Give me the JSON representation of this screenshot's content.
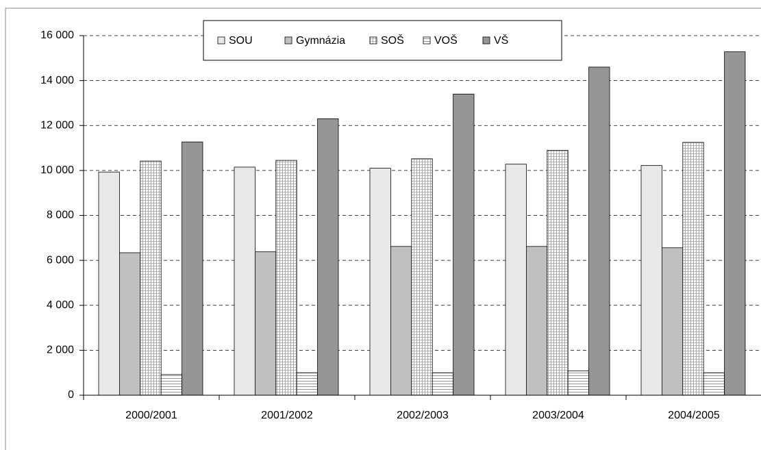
{
  "chart_data": {
    "type": "bar",
    "categories": [
      "2000/2001",
      "2001/2002",
      "2002/2003",
      "2003/2004",
      "2004/2005"
    ],
    "series": [
      {
        "name": "SOU",
        "color": "#e8e8e8",
        "values": [
          9930,
          10150,
          10100,
          10280,
          10220
        ]
      },
      {
        "name": "Gymnázia",
        "color": "#c0c0c0",
        "values": [
          6340,
          6380,
          6620,
          6620,
          6560
        ]
      },
      {
        "name": "SOŠ",
        "color": "#ffffff",
        "pattern": "grid",
        "values": [
          10420,
          10450,
          10520,
          10900,
          11250
        ]
      },
      {
        "name": "VOŠ",
        "color": "#ffffff",
        "pattern": "lines",
        "values": [
          920,
          1000,
          1000,
          1080,
          1000
        ]
      },
      {
        "name": "VŠ",
        "color": "#969696",
        "values": [
          11270,
          12300,
          13400,
          14600,
          15280
        ]
      }
    ],
    "ylim": [
      0,
      16000
    ],
    "yticks": [
      0,
      {
        "value": 2000,
        "label": "2 000"
      },
      {
        "value": 4000,
        "label": "4 000"
      },
      {
        "value": 6000,
        "label": "6 000"
      },
      {
        "value": 8000,
        "label": "8 000"
      },
      {
        "value": 10000,
        "label": "10 000"
      },
      {
        "value": 12000,
        "label": "12 000"
      },
      {
        "value": 14000,
        "label": "14 000"
      },
      {
        "value": 16000,
        "label": "16 000"
      }
    ],
    "grid": true,
    "legend": "top"
  }
}
